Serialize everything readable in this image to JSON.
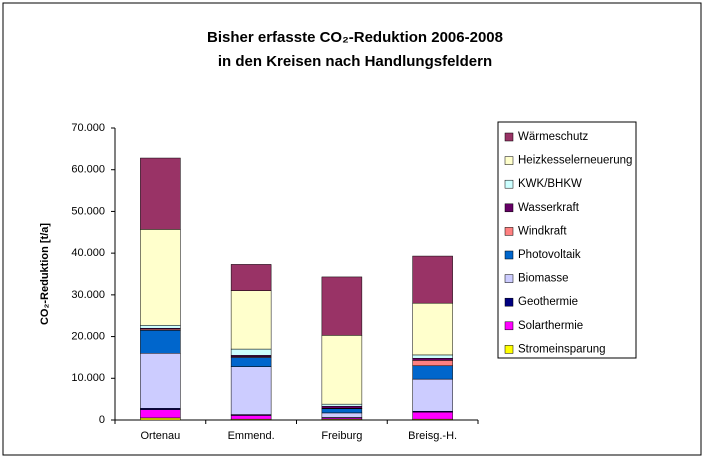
{
  "chart_data": {
    "type": "stacked_bar",
    "title": [
      "Bisher erfasste CO₂-Reduktion 2006-2008",
      "in den Kreisen nach Handlungsfeldern"
    ],
    "y_label": "CO₂-Reduktion [t/a]",
    "categories": [
      "Ortenau",
      "Emmend.",
      "Freiburg",
      "Breisg.-H."
    ],
    "series": [
      {
        "name": "Stromeinsparung",
        "color": "#ffff00",
        "values": [
          500,
          200,
          200,
          200
        ]
      },
      {
        "name": "Solarthermie",
        "color": "#ff00ff",
        "values": [
          2000,
          900,
          300,
          1700
        ]
      },
      {
        "name": "Geothermie",
        "color": "#000080",
        "values": [
          300,
          200,
          100,
          200
        ]
      },
      {
        "name": "Biomasse",
        "color": "#ccccff",
        "values": [
          13200,
          11500,
          1100,
          7700
        ]
      },
      {
        "name": "Photovoltaik",
        "color": "#0066cc",
        "values": [
          5500,
          2200,
          1000,
          3200
        ]
      },
      {
        "name": "Windkraft",
        "color": "#ff8080",
        "values": [
          300,
          200,
          100,
          1300
        ]
      },
      {
        "name": "Wasserkraft",
        "color": "#660066",
        "values": [
          200,
          300,
          500,
          500
        ]
      },
      {
        "name": "KWK/BHKW",
        "color": "#ccffff",
        "values": [
          700,
          1500,
          500,
          800
        ]
      },
      {
        "name": "Heizkesselerneuerung",
        "color": "#ffffcc",
        "values": [
          23000,
          14000,
          16500,
          12400
        ]
      },
      {
        "name": "Wärmeschutz",
        "color": "#993366",
        "values": [
          17100,
          6300,
          14000,
          11300
        ]
      }
    ],
    "ylim": [
      0,
      70000
    ],
    "yticks": [
      0,
      {
        "value": 10000,
        "label": "10.000"
      },
      {
        "value": 20000,
        "label": "20.000"
      },
      {
        "value": 30000,
        "label": "30.000"
      },
      {
        "value": 40000,
        "label": "40.000"
      },
      {
        "value": 50000,
        "label": "50.000"
      },
      {
        "value": 60000,
        "label": "60.000"
      },
      {
        "value": 70000,
        "label": "70.000"
      }
    ],
    "legend": "right",
    "legend_order": "reversed"
  }
}
